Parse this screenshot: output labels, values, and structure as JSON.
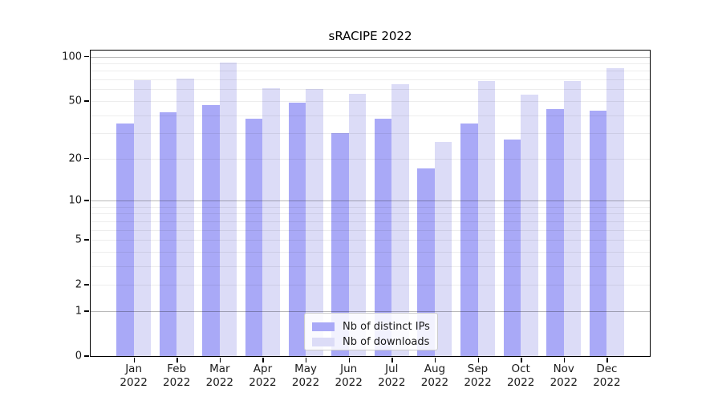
{
  "chart_data": {
    "type": "bar",
    "title": "sRACIPE 2022",
    "scale": "log10(value+1)",
    "categories": [
      "Jan",
      "Feb",
      "Mar",
      "Apr",
      "May",
      "Jun",
      "Jul",
      "Aug",
      "Sep",
      "Oct",
      "Nov",
      "Dec"
    ],
    "year_label": "2022",
    "series": [
      {
        "name": "Nb of distinct IPs",
        "color": "#a9a9f7",
        "values": [
          35,
          42,
          47,
          38,
          49,
          30,
          38,
          17,
          35,
          27,
          44,
          43
        ]
      },
      {
        "name": "Nb of downloads",
        "color": "#dcdcf7",
        "values": [
          69,
          71,
          91,
          61,
          60,
          56,
          65,
          26,
          68,
          55,
          68,
          84
        ]
      }
    ],
    "xlabel": "",
    "ylabel": "",
    "ylim": [
      0,
      110
    ],
    "yticks": [
      0,
      1,
      2,
      5,
      10,
      20,
      50,
      100
    ],
    "grid": {
      "major": [
        1,
        10,
        100
      ],
      "minor": [
        2,
        3,
        4,
        5,
        6,
        7,
        8,
        9,
        20,
        30,
        40,
        50,
        60,
        70,
        80,
        90
      ]
    },
    "legend_position": "bottom-center",
    "axis_color": "#000000",
    "background_color": "#ffffff"
  }
}
